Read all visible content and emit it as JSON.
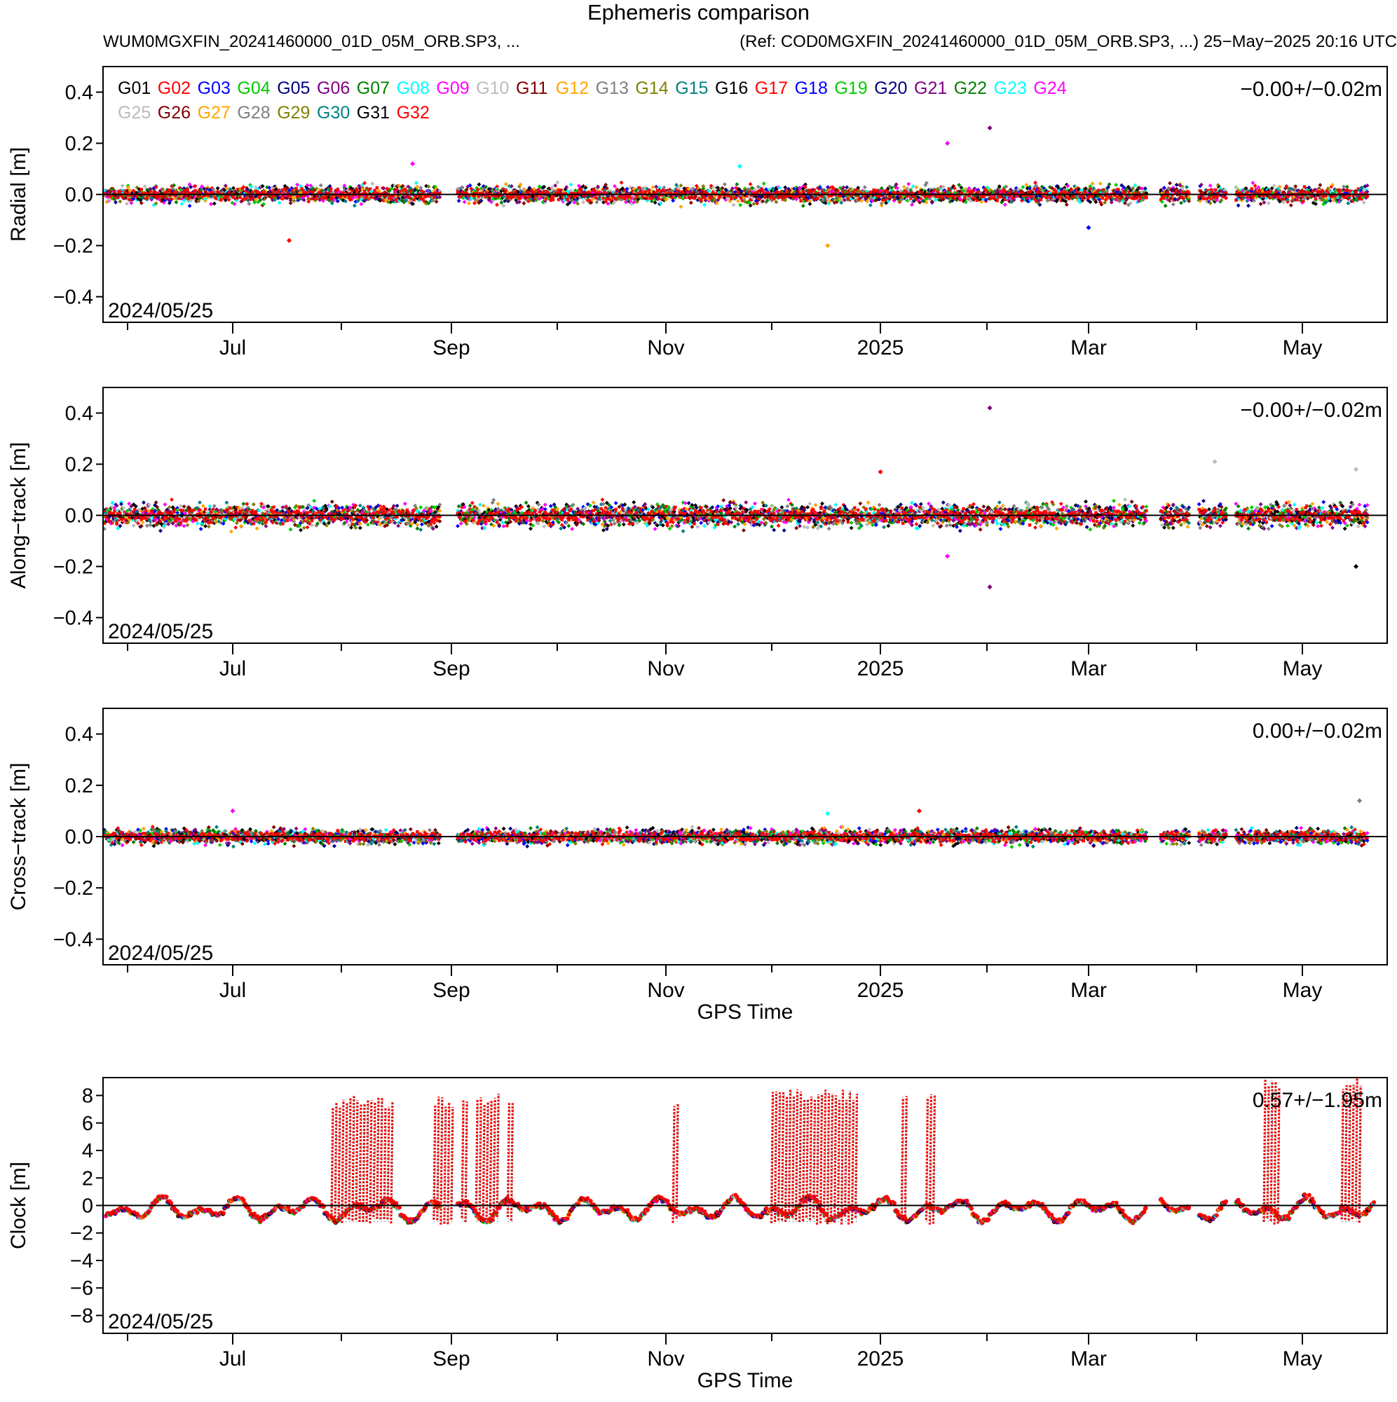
{
  "title": "Ephemeris comparison",
  "subtitle_left": "WUM0MGXFIN_20241460000_01D_05M_ORB.SP3, ...",
  "subtitle_right": "(Ref: COD0MGXFIN_20241460000_01D_05M_ORB.SP3, ...) 25−May−2025 20:16 UTC",
  "colors": {
    "G01": "#000000",
    "G02": "#ff0000",
    "G03": "#0000ff",
    "G04": "#00cc00",
    "G05": "#000080",
    "G06": "#800080",
    "G07": "#008000",
    "G08": "#00ffff",
    "G09": "#ff00ff",
    "G10": "#bbbbbb",
    "G11": "#800000",
    "G12": "#ffa500",
    "G13": "#808080",
    "G14": "#808000",
    "G15": "#008080",
    "G16": "#000000",
    "G17": "#ff0000",
    "G18": "#0000ff",
    "G19": "#00cc00",
    "G20": "#000080",
    "G21": "#800080",
    "G22": "#008000",
    "G23": "#00ffff",
    "G24": "#ff00ff",
    "G25": "#bbbbbb",
    "G26": "#800000",
    "G27": "#ffa500",
    "G28": "#808080",
    "G29": "#808000",
    "G30": "#008080",
    "G31": "#000000",
    "G32": "#ff0000"
  },
  "chart_data": [
    {
      "type": "scatter",
      "ylabel": "Radial [m]",
      "xlabel": "",
      "ylim": [
        -0.5,
        0.5
      ],
      "yticks": [
        -0.4,
        -0.2,
        0.0,
        0.2,
        0.4
      ],
      "xticks": [
        "Jul",
        "Sep",
        "Nov",
        "2025",
        "Mar",
        "May"
      ],
      "stats": "−0.00+/−0.02m",
      "start_label": "2024/05/25",
      "legend": [
        "G01",
        "G02",
        "G03",
        "G04",
        "G05",
        "G06",
        "G07",
        "G08",
        "G09",
        "G10",
        "G11",
        "G12",
        "G13",
        "G14",
        "G15",
        "G16",
        "G17",
        "G18",
        "G19",
        "G20",
        "G21",
        "G22",
        "G23",
        "G24",
        "G25",
        "G26",
        "G27",
        "G28",
        "G29",
        "G30",
        "G31",
        "G32"
      ],
      "legend_position": "top-left",
      "spread": 0.03,
      "reference_line": 0,
      "outliers": [
        {
          "date": "2024-07-17",
          "y": -0.18,
          "sat": "G02"
        },
        {
          "date": "2024-08-21",
          "y": 0.12,
          "sat": "G09"
        },
        {
          "date": "2024-11-22",
          "y": 0.11,
          "sat": "G08"
        },
        {
          "date": "2024-12-17",
          "y": -0.2,
          "sat": "G12"
        },
        {
          "date": "2025-01-20",
          "y": 0.2,
          "sat": "G09"
        },
        {
          "date": "2025-02-01",
          "y": 0.26,
          "sat": "G21"
        },
        {
          "date": "2025-03-01",
          "y": -0.13,
          "sat": "G03"
        }
      ]
    },
    {
      "type": "scatter",
      "ylabel": "Along−track [m]",
      "xlabel": "",
      "ylim": [
        -0.5,
        0.5
      ],
      "yticks": [
        -0.4,
        -0.2,
        0.0,
        0.2,
        0.4
      ],
      "xticks": [
        "Jul",
        "Sep",
        "Nov",
        "2025",
        "Mar",
        "May"
      ],
      "stats": "−0.00+/−0.02m",
      "start_label": "2024/05/25",
      "spread": 0.04,
      "reference_line": 0,
      "outliers": [
        {
          "date": "2025-01-01",
          "y": 0.17,
          "sat": "G02"
        },
        {
          "date": "2025-01-20",
          "y": -0.16,
          "sat": "G09"
        },
        {
          "date": "2025-02-01",
          "y": 0.42,
          "sat": "G21"
        },
        {
          "date": "2025-02-01",
          "y": -0.28,
          "sat": "G21"
        },
        {
          "date": "2025-04-06",
          "y": 0.21,
          "sat": "G10"
        },
        {
          "date": "2025-05-16",
          "y": 0.18,
          "sat": "G10"
        },
        {
          "date": "2025-05-16",
          "y": -0.2,
          "sat": "G01"
        }
      ]
    },
    {
      "type": "scatter",
      "ylabel": "Cross−track [m]",
      "xlabel": "GPS Time",
      "ylim": [
        -0.5,
        0.5
      ],
      "yticks": [
        -0.4,
        -0.2,
        0.0,
        0.2,
        0.4
      ],
      "xticks": [
        "Jul",
        "Sep",
        "Nov",
        "2025",
        "Mar",
        "May"
      ],
      "stats": "0.00+/−0.02m",
      "start_label": "2024/05/25",
      "spread": 0.025,
      "reference_line": 0,
      "outliers": [
        {
          "date": "2024-07-01",
          "y": 0.1,
          "sat": "G09"
        },
        {
          "date": "2024-12-17",
          "y": 0.09,
          "sat": "G08"
        },
        {
          "date": "2025-01-12",
          "y": 0.1,
          "sat": "G02"
        },
        {
          "date": "2025-05-17",
          "y": 0.14,
          "sat": "G13"
        }
      ]
    },
    {
      "type": "scatter",
      "ylabel": "Clock [m]",
      "xlabel": "GPS Time",
      "ylim": [
        -9.3,
        9.3
      ],
      "yticks": [
        -8,
        -6,
        -4,
        -2,
        0,
        2,
        4,
        6,
        8
      ],
      "xticks": [
        "Jul",
        "Sep",
        "Nov",
        "2025",
        "Mar",
        "May"
      ],
      "stats": "0.57+/−1.95m",
      "start_label": "2024/05/25",
      "reference_line": 0,
      "spikes": [
        {
          "from": "2024-07-29",
          "to": "2024-08-15",
          "top": 8.0
        },
        {
          "from": "2024-08-27",
          "to": "2024-09-01",
          "top": 8.0
        },
        {
          "from": "2024-09-04",
          "to": "2024-09-05",
          "top": 8.2
        },
        {
          "from": "2024-09-08",
          "to": "2024-09-14",
          "top": 8.2
        },
        {
          "from": "2024-09-17",
          "to": "2024-09-18",
          "top": 7.8
        },
        {
          "from": "2024-11-03",
          "to": "2024-11-04",
          "top": 7.9
        },
        {
          "from": "2024-12-01",
          "to": "2024-12-25",
          "top": 8.5
        },
        {
          "from": "2025-01-07",
          "to": "2025-01-08",
          "top": 8.7
        },
        {
          "from": "2025-01-14",
          "to": "2025-01-16",
          "top": 8.4
        },
        {
          "from": "2025-04-20",
          "to": "2025-04-24",
          "top": 9.2
        },
        {
          "from": "2025-05-12",
          "to": "2025-05-17",
          "top": 9.3
        }
      ]
    }
  ]
}
